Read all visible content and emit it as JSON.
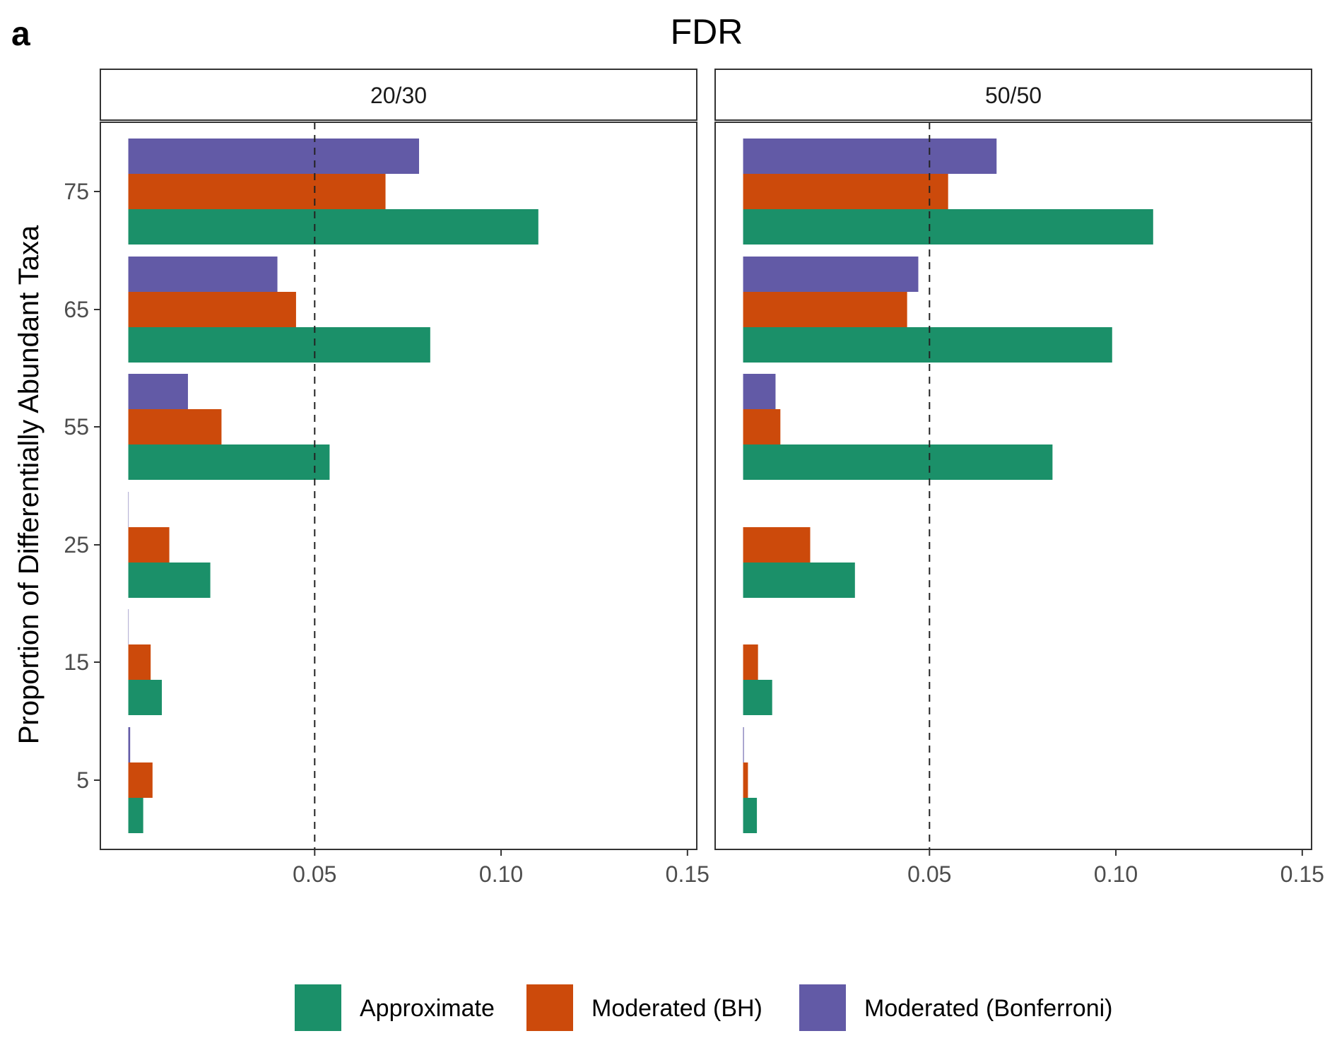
{
  "panel_label": "a",
  "colors": {
    "Approximate": "#1B9069",
    "Moderated (BH)": "#CC4A0B",
    "Moderated (Bonferroni)": "#625AA6"
  },
  "chart_data": {
    "type": "bar",
    "orientation": "horizontal",
    "title": "FDR",
    "xlabel": "",
    "ylabel": "Proportion of Differentially Abundant Taxa",
    "xlim": [
      -0.0075,
      0.1525
    ],
    "x_ticks": [
      0.05,
      0.1,
      0.15
    ],
    "x_tick_labels": [
      "0.05",
      "0.10",
      "0.15"
    ],
    "categories": [
      "5",
      "15",
      "25",
      "55",
      "65",
      "75"
    ],
    "reference_line": {
      "x": 0.05,
      "style": "dashed"
    },
    "grid": false,
    "legend_position": "bottom",
    "legend": [
      "Approximate",
      "Moderated (BH)",
      "Moderated (Bonferroni)"
    ],
    "facets": [
      {
        "label": "20/30",
        "series": [
          {
            "name": "Approximate",
            "values": [
              0.004,
              0.009,
              0.022,
              0.054,
              0.081,
              0.11
            ]
          },
          {
            "name": "Moderated (BH)",
            "values": [
              0.0065,
              0.006,
              0.011,
              0.025,
              0.045,
              0.069
            ]
          },
          {
            "name": "Moderated (Bonferroni)",
            "values": [
              0.0005,
              0.0001,
              0.0001,
              0.016,
              0.04,
              0.078
            ]
          }
        ]
      },
      {
        "label": "50/50",
        "series": [
          {
            "name": "Approximate",
            "values": [
              0.0037,
              0.0078,
              0.03,
              0.083,
              0.099,
              0.11
            ]
          },
          {
            "name": "Moderated (BH)",
            "values": [
              0.0013,
              0.004,
              0.018,
              0.01,
              0.044,
              0.055
            ]
          },
          {
            "name": "Moderated (Bonferroni)",
            "values": [
              0.0002,
              0.0,
              0.0,
              0.0087,
              0.047,
              0.068
            ]
          }
        ]
      }
    ]
  }
}
